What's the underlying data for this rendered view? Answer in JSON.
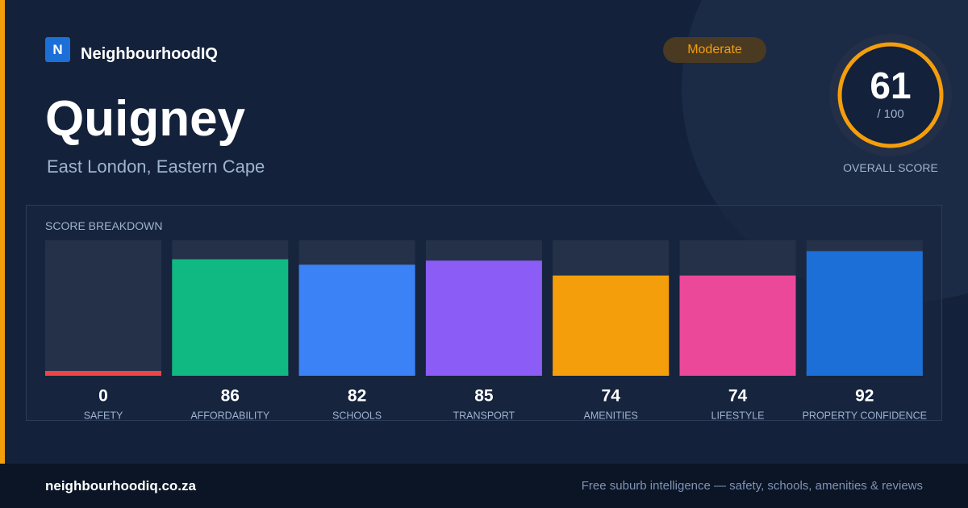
{
  "header": {
    "logo": "N",
    "brand": "NeighbourhoodIQ",
    "title": "Quigney",
    "subtitle": "East London, Eastern Cape",
    "badge": "Moderate"
  },
  "score": {
    "value": 61,
    "out_of": "/ 100",
    "label": "OVERALL SCORE"
  },
  "chart_data": {
    "type": "bar",
    "title": "SCORE BREAKDOWN",
    "categories": [
      "SAFETY",
      "AFFORDABILITY",
      "SCHOOLS",
      "TRANSPORT",
      "AMENITIES",
      "LIFESTYLE",
      "PROPERTY CONFIDENCE"
    ],
    "values": [
      0,
      86,
      82,
      85,
      74,
      74,
      92
    ],
    "colors": [
      "#ef4444",
      "#10b981",
      "#3b82f6",
      "#8b5cf6",
      "#f59e0b",
      "#ec4899",
      "#1d6fd8"
    ],
    "ylim": [
      0,
      100
    ]
  },
  "footer": {
    "url": "neighbourhoodiq.co.za",
    "tagline": "Free suburb intelligence — safety, schools, amenities & reviews"
  }
}
